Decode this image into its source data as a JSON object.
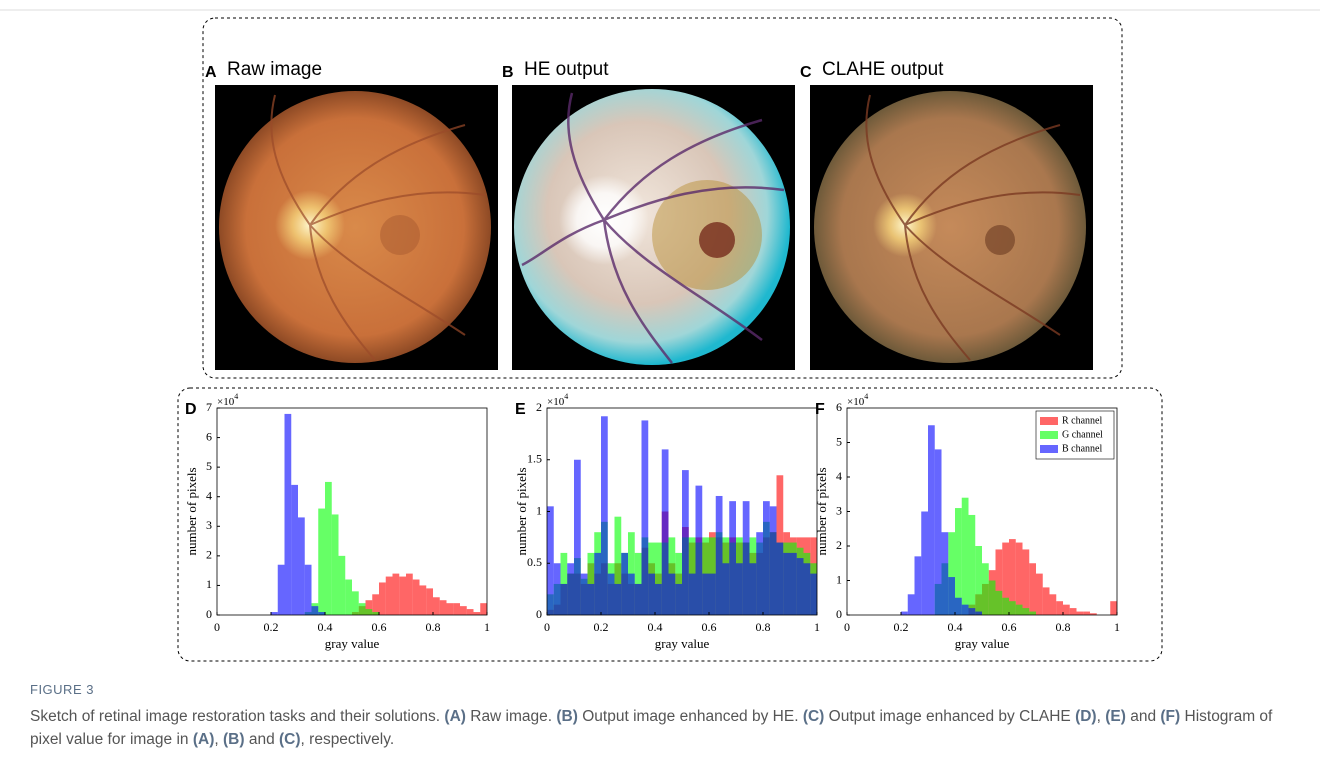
{
  "panels": [
    {
      "letter": "A",
      "title": "Raw image"
    },
    {
      "letter": "B",
      "title": "HE output"
    },
    {
      "letter": "C",
      "title": "CLAHE output"
    }
  ],
  "chart_data": [
    {
      "type": "histogram",
      "letter": "D",
      "ymultiplier": "×10",
      "yexponent": "4",
      "xlabel": "gray value",
      "ylabel": "number of pixels",
      "bins": [
        0,
        0.025,
        0.05,
        0.075,
        0.1,
        0.125,
        0.15,
        0.175,
        0.2,
        0.225,
        0.25,
        0.275,
        0.3,
        0.325,
        0.35,
        0.375,
        0.4,
        0.425,
        0.45,
        0.475,
        0.5,
        0.525,
        0.55,
        0.575,
        0.6,
        0.625,
        0.65,
        0.675,
        0.7,
        0.725,
        0.75,
        0.775,
        0.8,
        0.825,
        0.85,
        0.875,
        0.9,
        0.925,
        0.95,
        0.975,
        1
      ],
      "xlim": [
        0,
        1
      ],
      "ylim": [
        0,
        7
      ],
      "xticks": [
        0,
        0.2,
        0.4,
        0.6,
        0.8,
        1
      ],
      "yticks": [
        0,
        1,
        2,
        3,
        4,
        5,
        6,
        7
      ],
      "alpha": 0.6,
      "series": [
        {
          "color": "#ff0000",
          "values": [
            0,
            0,
            0,
            0,
            0,
            0,
            0,
            0,
            0,
            0,
            0,
            0,
            0,
            0,
            0,
            0,
            0,
            0,
            0,
            0,
            0.1,
            0.3,
            0.5,
            0.7,
            1.1,
            1.3,
            1.4,
            1.3,
            1.4,
            1.2,
            1.0,
            0.9,
            0.6,
            0.5,
            0.4,
            0.4,
            0.3,
            0.2,
            0.1,
            0.4
          ]
        },
        {
          "color": "#00ff00",
          "values": [
            0,
            0,
            0,
            0,
            0,
            0,
            0,
            0,
            0,
            0,
            0,
            0,
            0,
            0.1,
            0.4,
            3.6,
            4.5,
            3.4,
            2.0,
            1.2,
            0.8,
            0.4,
            0.2,
            0.1,
            0,
            0,
            0,
            0,
            0,
            0,
            0,
            0,
            0,
            0,
            0,
            0,
            0,
            0,
            0,
            0
          ]
        },
        {
          "color": "#0000ff",
          "values": [
            0,
            0,
            0,
            0,
            0,
            0,
            0,
            0,
            0.1,
            1.7,
            6.8,
            4.4,
            3.3,
            1.7,
            0.3,
            0.1,
            0,
            0,
            0,
            0,
            0,
            0,
            0,
            0,
            0,
            0,
            0,
            0,
            0,
            0,
            0,
            0,
            0,
            0,
            0,
            0,
            0,
            0,
            0,
            0
          ]
        }
      ]
    },
    {
      "type": "histogram",
      "letter": "E",
      "ymultiplier": "×10",
      "yexponent": "4",
      "xlabel": "gray value",
      "ylabel": "number of pixels",
      "bins": [
        0,
        0.025,
        0.05,
        0.075,
        0.1,
        0.125,
        0.15,
        0.175,
        0.2,
        0.225,
        0.25,
        0.275,
        0.3,
        0.325,
        0.35,
        0.375,
        0.4,
        0.425,
        0.45,
        0.475,
        0.5,
        0.525,
        0.55,
        0.575,
        0.6,
        0.625,
        0.65,
        0.675,
        0.7,
        0.725,
        0.75,
        0.775,
        0.8,
        0.825,
        0.85,
        0.875,
        0.9,
        0.925,
        0.95,
        0.975,
        1
      ],
      "xlim": [
        0,
        1
      ],
      "ylim": [
        0,
        2
      ],
      "xticks": [
        0,
        0.2,
        0.4,
        0.6,
        0.8,
        1
      ],
      "yticks": [
        0,
        0.5,
        1,
        1.5,
        2
      ],
      "alpha": 0.6,
      "series": [
        {
          "color": "#ff0000",
          "values": [
            0.05,
            0.1,
            0.3,
            0.4,
            0.4,
            0.3,
            0.5,
            0.4,
            0.5,
            0.3,
            0.5,
            0.4,
            0.3,
            0.3,
            0.65,
            0.5,
            0.4,
            1.0,
            0.5,
            0.4,
            0.85,
            0.7,
            0.75,
            0.7,
            0.8,
            0.75,
            0.7,
            0.75,
            0.7,
            0.7,
            0.6,
            0.6,
            0.75,
            0.8,
            1.35,
            0.8,
            0.75,
            0.75,
            0.75,
            0.75
          ]
        },
        {
          "color": "#00ff00",
          "values": [
            0.2,
            0.3,
            0.6,
            0.4,
            0.55,
            0.35,
            0.6,
            0.8,
            0.9,
            0.5,
            0.95,
            0.6,
            0.8,
            0.6,
            0.75,
            0.7,
            0.7,
            0.7,
            0.75,
            0.6,
            0.75,
            0.75,
            0.7,
            0.75,
            0.75,
            0.8,
            0.75,
            0.7,
            0.75,
            0.7,
            0.75,
            0.7,
            0.9,
            0.8,
            0.7,
            0.7,
            0.7,
            0.65,
            0.6,
            0.5
          ]
        },
        {
          "color": "#0000ff",
          "values": [
            1.05,
            0.5,
            0.3,
            0.5,
            1.5,
            0.4,
            0.3,
            0.6,
            1.92,
            0.4,
            0.3,
            0.6,
            0.4,
            0.3,
            1.88,
            0.4,
            0.3,
            1.6,
            0.4,
            0.3,
            1.4,
            0.4,
            1.25,
            0.4,
            0.4,
            1.15,
            0.5,
            1.1,
            0.5,
            1.1,
            0.5,
            0.8,
            1.1,
            1.05,
            0.7,
            0.6,
            0.6,
            0.55,
            0.5,
            0.4
          ]
        }
      ]
    },
    {
      "type": "histogram",
      "letter": "F",
      "ymultiplier": "×10",
      "yexponent": "4",
      "xlabel": "gray value",
      "ylabel": "number of pixels",
      "bins": [
        0,
        0.025,
        0.05,
        0.075,
        0.1,
        0.125,
        0.15,
        0.175,
        0.2,
        0.225,
        0.25,
        0.275,
        0.3,
        0.325,
        0.35,
        0.375,
        0.4,
        0.425,
        0.45,
        0.475,
        0.5,
        0.525,
        0.55,
        0.575,
        0.6,
        0.625,
        0.65,
        0.675,
        0.7,
        0.725,
        0.75,
        0.775,
        0.8,
        0.825,
        0.85,
        0.875,
        0.9,
        0.925,
        0.95,
        0.975,
        1
      ],
      "xlim": [
        0,
        1
      ],
      "ylim": [
        0,
        6
      ],
      "xticks": [
        0,
        0.2,
        0.4,
        0.6,
        0.8,
        1
      ],
      "yticks": [
        0,
        1,
        2,
        3,
        4,
        5,
        6
      ],
      "alpha": 0.6,
      "legend": "upper right",
      "series": [
        {
          "name": "R channel",
          "color": "#ff0000",
          "values": [
            0,
            0,
            0,
            0,
            0,
            0,
            0,
            0,
            0,
            0,
            0,
            0,
            0,
            0,
            0,
            0,
            0,
            0,
            0.3,
            0.6,
            0.9,
            1.3,
            1.9,
            2.1,
            2.2,
            2.1,
            1.9,
            1.5,
            1.2,
            0.8,
            0.6,
            0.4,
            0.3,
            0.2,
            0.1,
            0.1,
            0.05,
            0,
            0,
            0.4
          ]
        },
        {
          "name": "G channel",
          "color": "#00ff00",
          "values": [
            0,
            0,
            0,
            0,
            0,
            0,
            0,
            0,
            0,
            0,
            0,
            0,
            0,
            0.9,
            1.5,
            2.4,
            3.1,
            3.4,
            2.9,
            2.0,
            1.5,
            1.0,
            0.7,
            0.5,
            0.4,
            0.3,
            0.2,
            0.1,
            0,
            0,
            0,
            0,
            0,
            0,
            0,
            0,
            0,
            0,
            0,
            0
          ]
        },
        {
          "name": "B channel",
          "color": "#0000ff",
          "values": [
            0,
            0,
            0,
            0,
            0,
            0,
            0,
            0,
            0.1,
            0.6,
            1.7,
            3.0,
            5.5,
            4.8,
            2.4,
            1.1,
            0.5,
            0.3,
            0.2,
            0.1,
            0,
            0,
            0,
            0,
            0,
            0,
            0,
            0,
            0,
            0,
            0,
            0,
            0,
            0,
            0,
            0,
            0,
            0,
            0,
            0
          ]
        }
      ]
    }
  ],
  "caption": {
    "label": "FIGURE 3",
    "parts": [
      "Sketch of retinal image restoration tasks and their solutions. ",
      "(A)",
      " Raw image. ",
      "(B)",
      " Output image enhanced by HE. ",
      "(C)",
      " Output image enhanced by CLAHE ",
      "(D)",
      ", ",
      "(E)",
      " and ",
      "(F)",
      " Histogram of pixel value for image in ",
      "(A)",
      ", ",
      "(B)",
      " and ",
      "(C)",
      ", respectively."
    ]
  }
}
